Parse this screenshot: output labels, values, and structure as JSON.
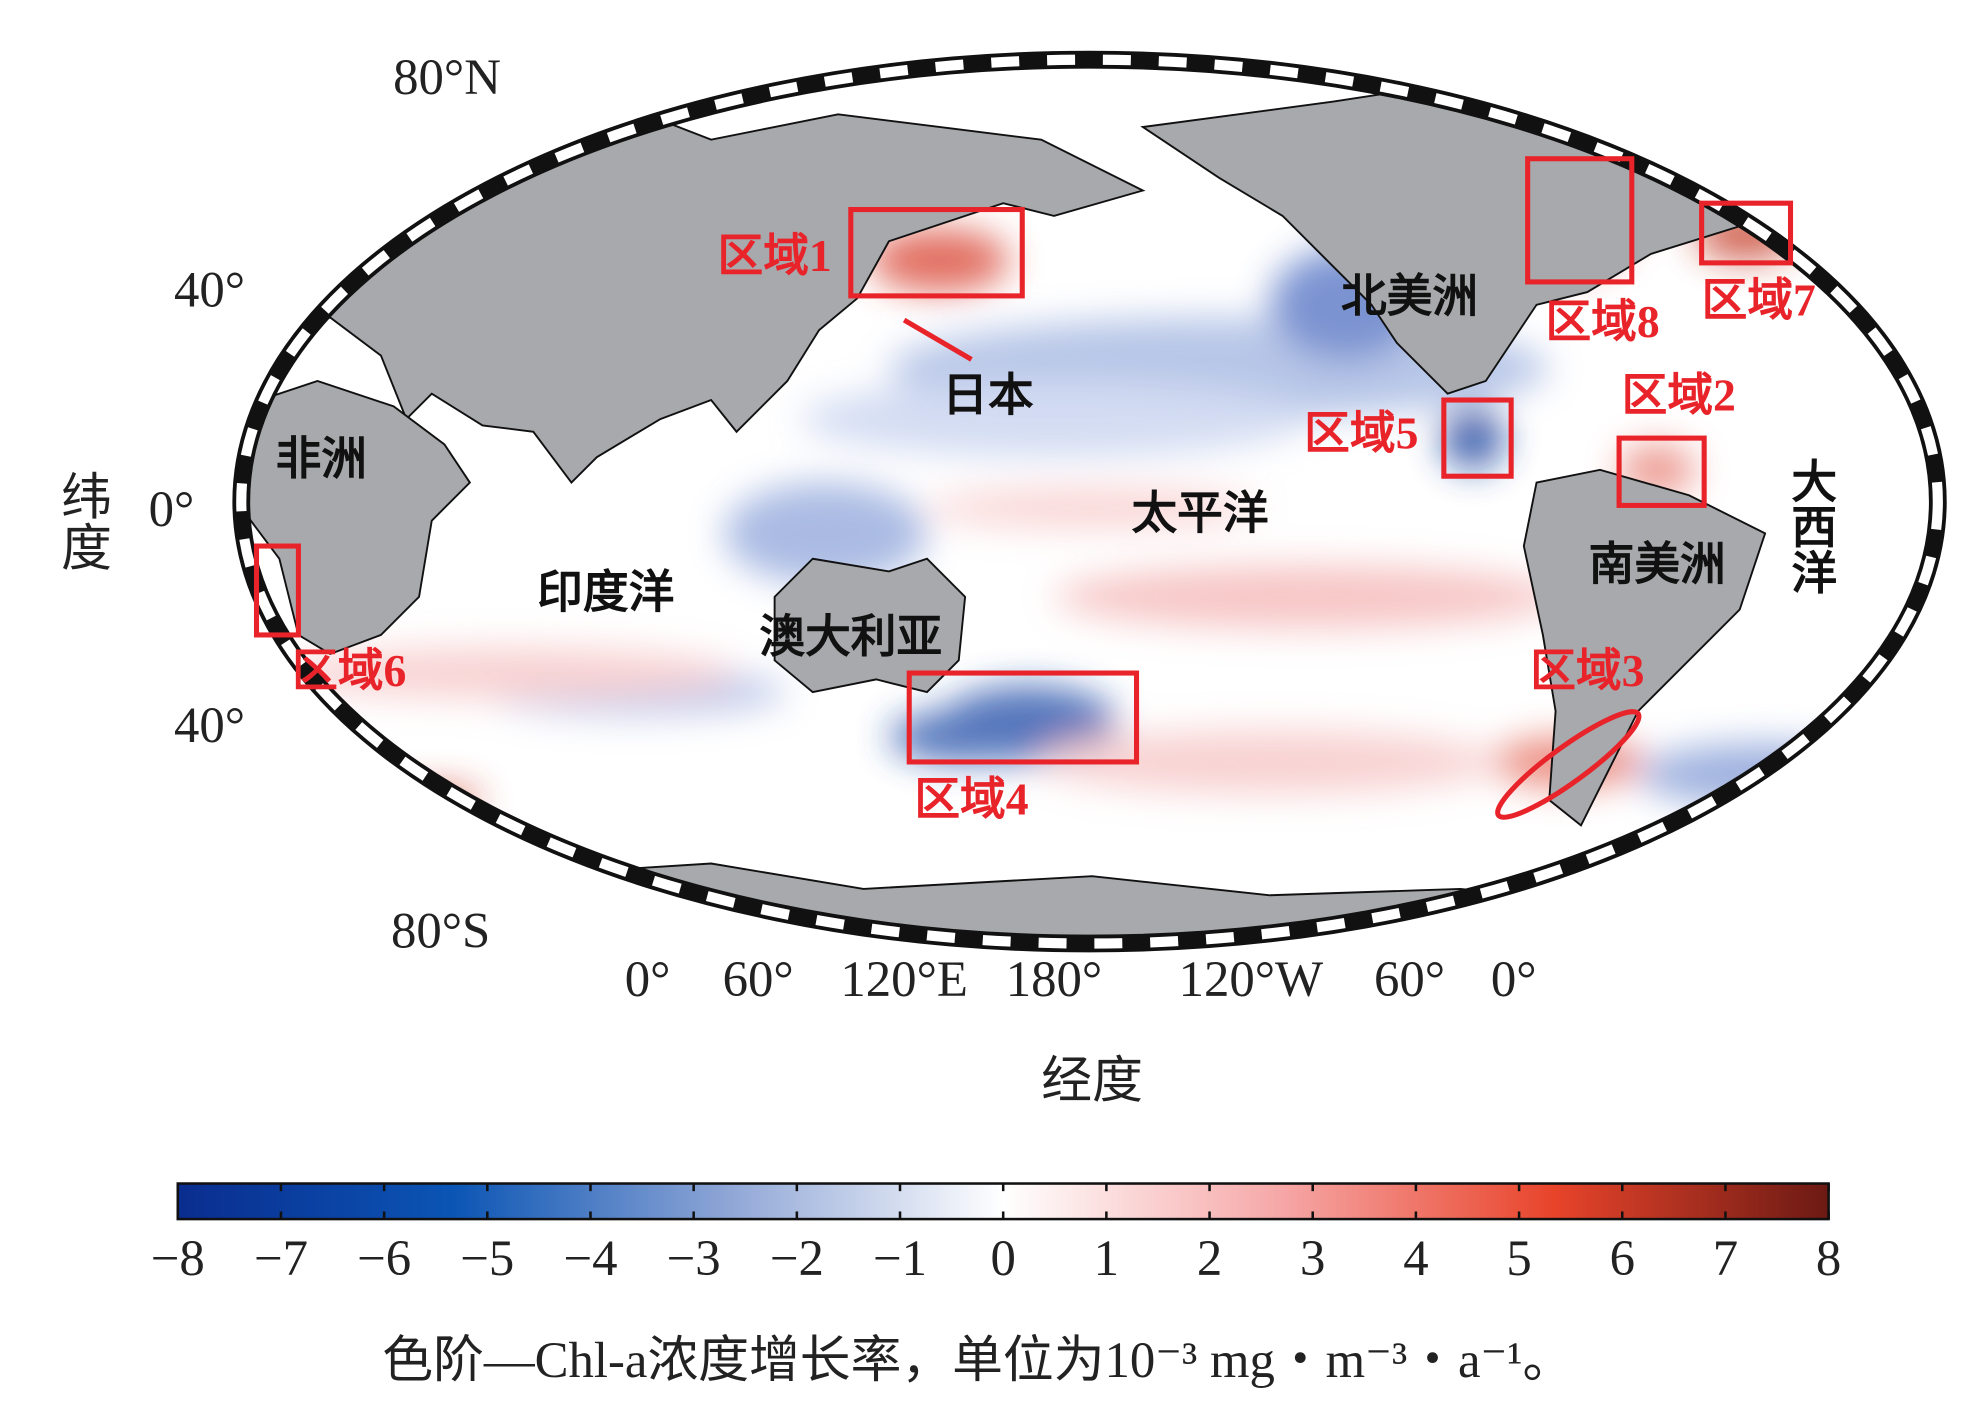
{
  "map": {
    "lat_labels": [
      "80°N",
      "40°",
      "0°",
      "40°",
      "80°S"
    ],
    "lon_labels": [
      "0°",
      "60°",
      "120°E",
      "180°",
      "120°W",
      "60°",
      "0°"
    ],
    "y_label": "纬度",
    "x_label": "经度",
    "continents": [
      "北美洲",
      "南美洲",
      "非洲",
      "澳大利亚"
    ],
    "oceans": [
      "印度洋",
      "太平洋",
      "大西洋"
    ],
    "places": [
      "日本"
    ],
    "regions": [
      "区域1",
      "区域2",
      "区域3",
      "区域4",
      "区域5",
      "区域6",
      "区域7",
      "区域8"
    ]
  },
  "colorbar": {
    "range": [
      -8,
      8
    ],
    "colors": [
      "#0a2d8f",
      "#0b55b4",
      "#8fa6d6",
      "#ffffff",
      "#f6a8a8",
      "#e8442a",
      "#6b1a14"
    ],
    "ticks": [
      {
        "value": -8,
        "label": "−8"
      },
      {
        "value": -7,
        "label": "−7"
      },
      {
        "value": -6,
        "label": "−6"
      },
      {
        "value": -5,
        "label": "−5"
      },
      {
        "value": -4,
        "label": "−4"
      },
      {
        "value": -3,
        "label": "−3"
      },
      {
        "value": -2,
        "label": "−2"
      },
      {
        "value": -1,
        "label": "−1"
      },
      0,
      1,
      2,
      3,
      4,
      5,
      6,
      7,
      8
    ],
    "caption": "色阶—Chl-a浓度增长率，单位为10⁻³ mg・m⁻³・a⁻¹。"
  }
}
